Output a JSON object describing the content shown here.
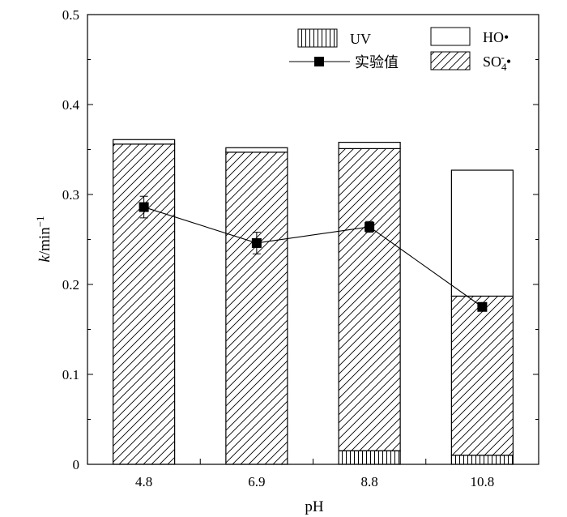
{
  "chart_data": {
    "type": "bar",
    "stacked": true,
    "xlabel": "pH",
    "ylabel": "k/min",
    "ylabel_sup": "−1",
    "ylim": [
      0,
      0.5
    ],
    "yticks": [
      0,
      0.1,
      0.2,
      0.3,
      0.4,
      0.5
    ],
    "ytick_labels": [
      "0",
      "0.1",
      "0.2",
      "0.3",
      "0.4",
      "0.5"
    ],
    "categories": [
      "4.8",
      "6.9",
      "8.8",
      "10.8"
    ],
    "series": [
      {
        "name": "UV",
        "pattern": "vertical",
        "values": [
          0.0,
          0.0,
          0.015,
          0.01
        ]
      },
      {
        "name": "SO4-•",
        "label_main": "SO",
        "label_sub": "4",
        "label_sup": "-",
        "label_tail": "•",
        "pattern": "diagonal",
        "values": [
          0.356,
          0.347,
          0.336,
          0.177
        ]
      },
      {
        "name": "HO•",
        "pattern": "none",
        "values": [
          0.005,
          0.005,
          0.007,
          0.14
        ]
      }
    ],
    "line_series": {
      "name": "实验值",
      "values": [
        0.286,
        0.246,
        0.264,
        0.175
      ],
      "errors": [
        0.012,
        0.012,
        0.006,
        0.004
      ]
    },
    "grid": false,
    "legend_position": "top-right"
  }
}
